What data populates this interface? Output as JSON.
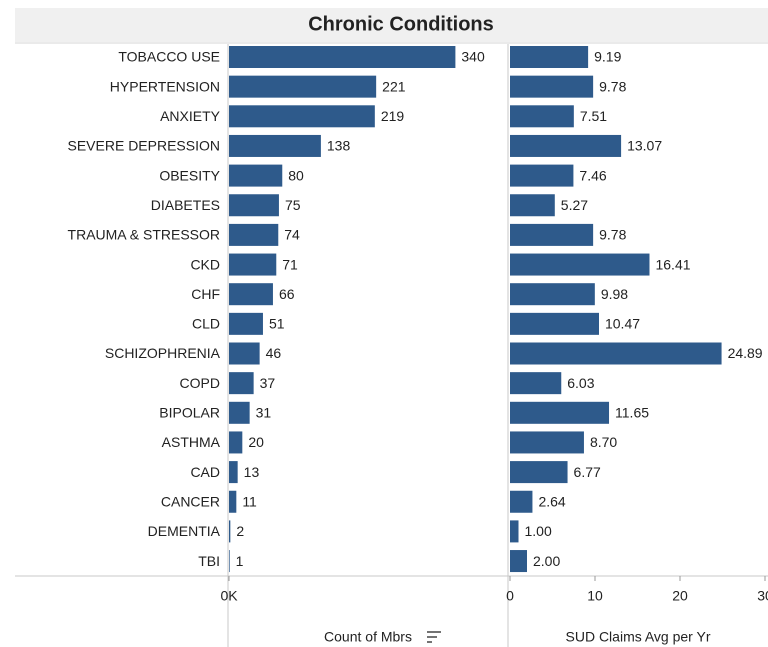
{
  "chart_data": {
    "type": "bar",
    "orientation": "horizontal",
    "title": "Chronic Conditions",
    "categories": [
      "TOBACCO USE",
      "HYPERTENSION",
      "ANXIETY",
      "SEVERE DEPRESSION",
      "OBESITY",
      "DIABETES",
      "TRAUMA & STRESSOR",
      "CKD",
      "CHF",
      "CLD",
      "SCHIZOPHRENIA",
      "COPD",
      "BIPOLAR",
      "ASTHMA",
      "CAD",
      "CANCER",
      "DEMENTIA",
      "TBI"
    ],
    "series": [
      {
        "name": "Count of Mbrs",
        "color": "#2e5a8b",
        "values": [
          340,
          221,
          219,
          138,
          80,
          75,
          74,
          71,
          66,
          51,
          46,
          37,
          31,
          20,
          13,
          11,
          2,
          1
        ],
        "xlim": [
          0,
          419
        ],
        "xticks": [
          {
            "value": 0,
            "label": "0K"
          }
        ]
      },
      {
        "name": "SUD Claims Avg per Yr",
        "color": "#2e5a8b",
        "values": [
          9.19,
          9.78,
          7.51,
          13.07,
          7.46,
          5.27,
          9.78,
          16.41,
          9.98,
          10.47,
          24.89,
          6.03,
          11.65,
          8.7,
          6.77,
          2.64,
          1,
          2
        ],
        "value_labels": [
          "9.19",
          "9.78",
          "7.51",
          "13.07",
          "7.46",
          "5.27",
          "9.78",
          "16.41",
          "9.98",
          "10.47",
          "24.89",
          "6.03",
          "11.65",
          "8.70",
          "6.77",
          "2.64",
          "1.00",
          "2.00"
        ],
        "xlim": [
          0,
          30
        ],
        "xticks": [
          0,
          10,
          20,
          30
        ]
      }
    ]
  }
}
